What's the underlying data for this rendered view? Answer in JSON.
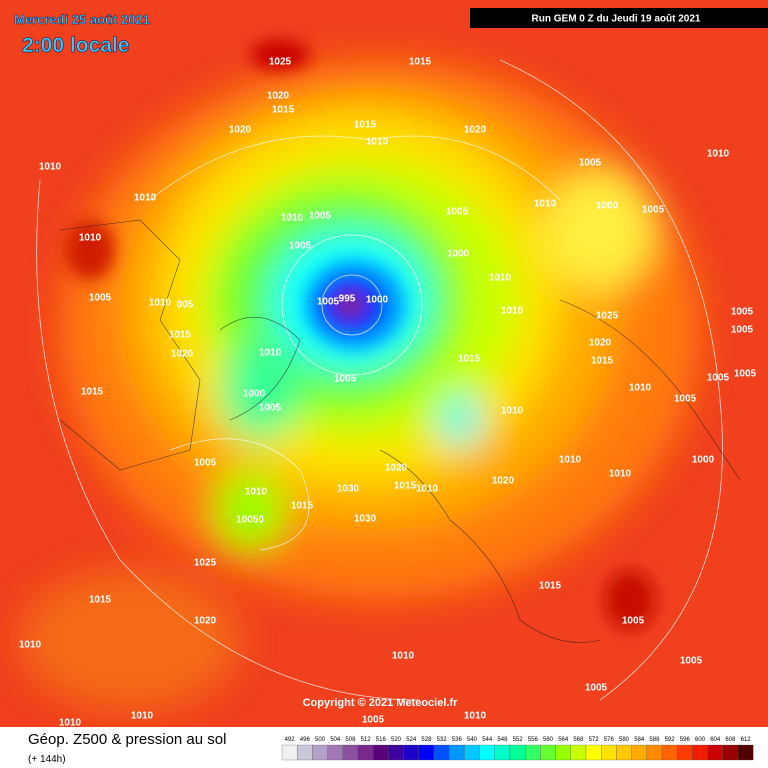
{
  "header": {
    "date": "Mercredi 25 août 2021",
    "time": "2:00 locale",
    "run": "Run GEM 0 Z du Jeudi 19 août 2021"
  },
  "copyright": "Copyright © 2021 Meteociel.fr",
  "footer": {
    "title": "Géop. Z500 & pression au sol",
    "subtitle": "(+ 144h)"
  },
  "scale": {
    "labels": [
      "492",
      "496",
      "500",
      "504",
      "508",
      "512",
      "516",
      "520",
      "524",
      "528",
      "532",
      "536",
      "540",
      "544",
      "548",
      "552",
      "556",
      "560",
      "564",
      "568",
      "572",
      "576",
      "580",
      "584",
      "588",
      "592",
      "596",
      "600",
      "604",
      "608",
      "612"
    ],
    "colors": [
      "#f0f0f0",
      "#c8c8d8",
      "#b4a0c8",
      "#a078b4",
      "#8c50a0",
      "#78288c",
      "#5a0078",
      "#3c00a0",
      "#1e00c8",
      "#0000ff",
      "#0050ff",
      "#0096ff",
      "#00c8ff",
      "#00ffff",
      "#00ffc8",
      "#00ff96",
      "#32ff64",
      "#64ff32",
      "#96ff00",
      "#c8ff00",
      "#ffff00",
      "#ffe100",
      "#ffc800",
      "#ffaa00",
      "#ff8c00",
      "#ff6400",
      "#ff3c00",
      "#f01e00",
      "#c80000",
      "#960000",
      "#500000"
    ]
  },
  "isobar_labels": [
    "1025",
    "1015",
    "1020",
    "1015",
    "1020",
    "1015",
    "1010",
    "1020",
    "1010",
    "1010",
    "1005",
    "1010",
    "1010",
    "1000",
    "1005",
    "1010",
    "1010",
    "1005",
    "1005",
    "1005",
    "1000",
    "1005",
    "1010",
    "005",
    "1005",
    "995",
    "1000",
    "1010",
    "1010",
    "1015",
    "1025",
    "1020",
    "1010",
    "1020",
    "1015",
    "1015",
    "1005",
    "1015",
    "1000",
    "1005",
    "1010",
    "1010",
    "1005",
    "1005",
    "1005",
    "1005",
    "1005",
    "1005",
    "1020",
    "1015",
    "1010",
    "1030",
    "1020",
    "1010",
    "1015",
    "1030",
    "10050",
    "1010",
    "1010",
    "1000",
    "1025",
    "1015",
    "1015",
    "1020",
    "1005",
    "1010",
    "1010",
    "1005",
    "1005",
    "1010",
    "1010",
    "1005",
    "1010"
  ]
}
